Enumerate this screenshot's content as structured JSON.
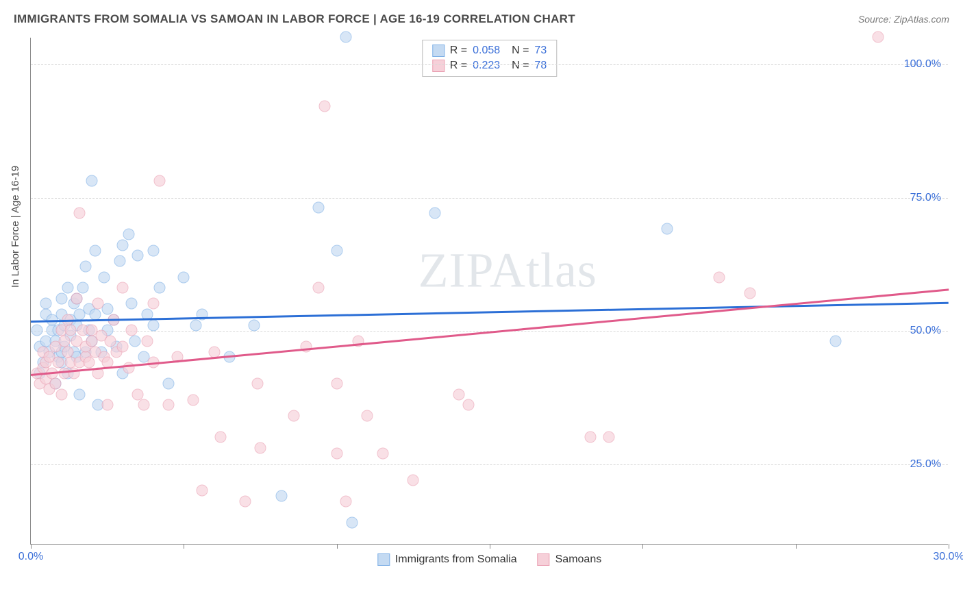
{
  "title": "IMMIGRANTS FROM SOMALIA VS SAMOAN IN LABOR FORCE | AGE 16-19 CORRELATION CHART",
  "source": "Source: ZipAtlas.com",
  "watermark": "ZIPAtlas",
  "y_axis_label": "In Labor Force | Age 16-19",
  "chart": {
    "type": "scatter",
    "xlim": [
      0,
      30
    ],
    "ylim": [
      10,
      105
    ],
    "x_ticks": [
      0,
      5,
      10,
      15,
      20,
      25,
      30
    ],
    "x_tick_labels": {
      "0": "0.0%",
      "30": "30.0%"
    },
    "y_gridlines": [
      25,
      50,
      75,
      100
    ],
    "y_tick_labels": {
      "25": "25.0%",
      "50": "50.0%",
      "75": "75.0%",
      "100": "100.0%"
    },
    "background_color": "#ffffff",
    "grid_color": "#d8d8d8",
    "axis_color": "#888888",
    "tick_label_color": "#3a6fd8",
    "marker_radius": 8.5,
    "marker_opacity": 0.65
  },
  "series": [
    {
      "name": "Immigrants from Somalia",
      "fill_color": "#c4daf2",
      "stroke_color": "#7fb0e6",
      "trend_color": "#2c6fd6",
      "r_value": "0.058",
      "n_value": "73",
      "trend": {
        "x1": 0,
        "y1": 52,
        "x2": 30,
        "y2": 55.5
      },
      "points": [
        [
          0.2,
          50
        ],
        [
          0.3,
          42
        ],
        [
          0.3,
          47
        ],
        [
          0.4,
          44
        ],
        [
          0.5,
          48
        ],
        [
          0.5,
          53
        ],
        [
          0.5,
          55
        ],
        [
          0.6,
          46
        ],
        [
          0.7,
          50
        ],
        [
          0.7,
          52
        ],
        [
          0.8,
          40
        ],
        [
          0.8,
          48
        ],
        [
          0.9,
          45
        ],
        [
          0.9,
          50
        ],
        [
          1.0,
          44
        ],
        [
          1.0,
          46
        ],
        [
          1.0,
          53
        ],
        [
          1.0,
          56
        ],
        [
          1.1,
          47
        ],
        [
          1.1,
          51
        ],
        [
          1.2,
          42
        ],
        [
          1.2,
          58
        ],
        [
          1.3,
          49
        ],
        [
          1.3,
          52
        ],
        [
          1.4,
          46
        ],
        [
          1.4,
          55
        ],
        [
          1.5,
          45
        ],
        [
          1.5,
          51
        ],
        [
          1.5,
          56
        ],
        [
          1.6,
          38
        ],
        [
          1.6,
          53
        ],
        [
          1.7,
          58
        ],
        [
          1.8,
          62
        ],
        [
          1.8,
          46
        ],
        [
          1.9,
          50
        ],
        [
          1.9,
          54
        ],
        [
          2.0,
          78
        ],
        [
          2.0,
          48
        ],
        [
          2.1,
          65
        ],
        [
          2.1,
          53
        ],
        [
          2.2,
          36
        ],
        [
          2.3,
          46
        ],
        [
          2.4,
          60
        ],
        [
          2.5,
          54
        ],
        [
          2.5,
          50
        ],
        [
          2.7,
          52
        ],
        [
          2.8,
          47
        ],
        [
          2.9,
          63
        ],
        [
          3.0,
          42
        ],
        [
          3.0,
          66
        ],
        [
          3.2,
          68
        ],
        [
          3.3,
          55
        ],
        [
          3.4,
          48
        ],
        [
          3.5,
          64
        ],
        [
          3.7,
          45
        ],
        [
          3.8,
          53
        ],
        [
          4.0,
          65
        ],
        [
          4.0,
          51
        ],
        [
          4.2,
          58
        ],
        [
          4.5,
          40
        ],
        [
          5.0,
          60
        ],
        [
          5.4,
          51
        ],
        [
          5.6,
          53
        ],
        [
          6.5,
          45
        ],
        [
          7.3,
          51
        ],
        [
          8.2,
          19
        ],
        [
          9.4,
          73
        ],
        [
          10.0,
          65
        ],
        [
          10.3,
          105
        ],
        [
          10.5,
          14
        ],
        [
          13.2,
          72
        ],
        [
          20.8,
          69
        ],
        [
          26.3,
          48
        ]
      ]
    },
    {
      "name": "Samoans",
      "fill_color": "#f6d0d9",
      "stroke_color": "#eaa0b3",
      "trend_color": "#e05a8a",
      "r_value": "0.223",
      "n_value": "78",
      "trend": {
        "x1": 0,
        "y1": 42,
        "x2": 30,
        "y2": 58
      },
      "points": [
        [
          0.2,
          42
        ],
        [
          0.3,
          40
        ],
        [
          0.4,
          43
        ],
        [
          0.4,
          46
        ],
        [
          0.5,
          41
        ],
        [
          0.5,
          44
        ],
        [
          0.6,
          39
        ],
        [
          0.6,
          45
        ],
        [
          0.7,
          42
        ],
        [
          0.8,
          40
        ],
        [
          0.8,
          47
        ],
        [
          0.9,
          44
        ],
        [
          1.0,
          38
        ],
        [
          1.0,
          50
        ],
        [
          1.1,
          42
        ],
        [
          1.1,
          48
        ],
        [
          1.2,
          46
        ],
        [
          1.2,
          52
        ],
        [
          1.3,
          44
        ],
        [
          1.3,
          50
        ],
        [
          1.4,
          42
        ],
        [
          1.5,
          48
        ],
        [
          1.5,
          56
        ],
        [
          1.6,
          44
        ],
        [
          1.6,
          72
        ],
        [
          1.7,
          50
        ],
        [
          1.8,
          45
        ],
        [
          1.8,
          47
        ],
        [
          1.9,
          44
        ],
        [
          2.0,
          48
        ],
        [
          2.0,
          50
        ],
        [
          2.1,
          46
        ],
        [
          2.2,
          42
        ],
        [
          2.2,
          55
        ],
        [
          2.3,
          49
        ],
        [
          2.4,
          45
        ],
        [
          2.5,
          44
        ],
        [
          2.5,
          36
        ],
        [
          2.6,
          48
        ],
        [
          2.7,
          52
        ],
        [
          2.8,
          46
        ],
        [
          3.0,
          47
        ],
        [
          3.0,
          58
        ],
        [
          3.2,
          43
        ],
        [
          3.3,
          50
        ],
        [
          3.5,
          38
        ],
        [
          3.7,
          36
        ],
        [
          3.8,
          48
        ],
        [
          4.0,
          44
        ],
        [
          4.0,
          55
        ],
        [
          4.2,
          78
        ],
        [
          4.5,
          36
        ],
        [
          4.8,
          45
        ],
        [
          5.3,
          37
        ],
        [
          5.6,
          20
        ],
        [
          6.0,
          46
        ],
        [
          6.2,
          30
        ],
        [
          7.0,
          18
        ],
        [
          7.4,
          40
        ],
        [
          7.5,
          28
        ],
        [
          8.6,
          34
        ],
        [
          9.0,
          47
        ],
        [
          9.4,
          58
        ],
        [
          9.6,
          92
        ],
        [
          10.0,
          27
        ],
        [
          10.0,
          40
        ],
        [
          10.3,
          18
        ],
        [
          10.7,
          48
        ],
        [
          11.0,
          34
        ],
        [
          11.5,
          27
        ],
        [
          12.5,
          22
        ],
        [
          14.0,
          38
        ],
        [
          14.3,
          36
        ],
        [
          18.3,
          30
        ],
        [
          18.9,
          30
        ],
        [
          22.5,
          60
        ],
        [
          23.5,
          57
        ],
        [
          27.7,
          105
        ]
      ]
    }
  ],
  "legend_bottom": [
    {
      "label": "Immigrants from Somalia",
      "series": 0
    },
    {
      "label": "Samoans",
      "series": 1
    }
  ]
}
